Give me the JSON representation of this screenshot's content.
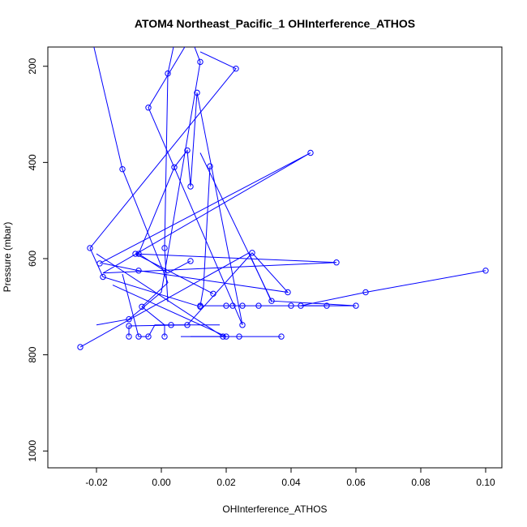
{
  "chart_data": {
    "type": "line",
    "title": "ATOM4 Northeast_Pacific_1 OHInterference_ATHOS",
    "xlabel": "OHInterference_ATHOS",
    "ylabel": "Pressure (mbar)",
    "xlim": [
      -0.035,
      0.105
    ],
    "ylim": [
      1035,
      160
    ],
    "y_reversed": true,
    "x_ticks": [
      -0.02,
      0.0,
      0.02,
      0.04,
      0.06,
      0.08,
      0.1
    ],
    "x_tick_labels": [
      "-0.02",
      "0.00",
      "0.02",
      "0.04",
      "0.06",
      "0.08",
      "0.10"
    ],
    "y_ticks": [
      200,
      400,
      600,
      800,
      1000
    ],
    "y_tick_labels": [
      "200",
      "400",
      "600",
      "800",
      "1000"
    ],
    "grid": false,
    "color": "#0000ff",
    "marker": "open-circle",
    "series": [
      {
        "x": [
          -0.022,
          -0.012,
          0.002,
          -0.006,
          0.001,
          0.001
        ],
        "y": [
          125,
          414,
          650,
          700,
          738,
          762
        ],
        "markers": [
          false,
          true,
          false,
          true,
          false,
          true
        ]
      },
      {
        "x": [
          0.005,
          0.002,
          0.001,
          0.002
        ],
        "y": [
          120,
          215,
          578,
          690
        ],
        "markers": [
          false,
          true,
          true,
          false
        ]
      },
      {
        "x": [
          0.008,
          0.012,
          0.0,
          -0.01,
          -0.02
        ],
        "y": [
          120,
          191,
          670,
          726,
          738
        ],
        "markers": [
          false,
          true,
          false,
          true,
          false
        ]
      },
      {
        "x": [
          0.012,
          0.023,
          -0.022,
          -0.018,
          0.012
        ],
        "y": [
          170,
          205,
          578,
          638,
          700
        ],
        "markers": [
          false,
          true,
          true,
          true,
          true
        ]
      },
      {
        "x": [
          0.009,
          -0.004,
          0.025,
          0.011,
          0.009,
          0.008,
          0.004,
          -0.007,
          0.002,
          0.009
        ],
        "y": [
          140,
          286,
          738,
          255,
          450,
          375,
          410,
          590,
          630,
          605
        ],
        "markers": [
          false,
          true,
          true,
          true,
          true,
          true,
          true,
          true,
          false,
          true
        ]
      },
      {
        "x": [
          0.015,
          0.013,
          0.012,
          0.02,
          0.025,
          0.03,
          0.022,
          0.04,
          0.051
        ],
        "y": [
          408,
          660,
          698,
          698,
          698,
          698,
          698,
          698,
          698
        ],
        "markers": [
          true,
          false,
          true,
          true,
          true,
          true,
          true,
          true,
          true
        ]
      },
      {
        "x": [
          0.012,
          0.034,
          0.06,
          0.043,
          0.063,
          0.1
        ],
        "y": [
          380,
          688,
          698,
          698,
          670,
          625
        ],
        "markers": [
          false,
          true,
          true,
          true,
          true,
          true
        ]
      },
      {
        "x": [
          -0.019,
          0.046,
          -0.018,
          0.054,
          -0.008,
          0.016
        ],
        "y": [
          610,
          380,
          630,
          608,
          590,
          673
        ],
        "markers": [
          true,
          true,
          false,
          true,
          true,
          true
        ]
      },
      {
        "x": [
          -0.018,
          -0.007,
          0.039,
          0.028,
          0.008,
          -0.01,
          -0.01
        ],
        "y": [
          610,
          625,
          670,
          588,
          738,
          740,
          762
        ],
        "markers": [
          false,
          true,
          true,
          true,
          true,
          true,
          true
        ]
      },
      {
        "x": [
          -0.012,
          -0.007,
          -0.004,
          -0.002,
          0.003,
          0.016,
          0.018
        ],
        "y": [
          632,
          762,
          762,
          738,
          738,
          738,
          738
        ],
        "markers": [
          false,
          true,
          true,
          false,
          true,
          false,
          false
        ]
      },
      {
        "x": [
          -0.02,
          0.019,
          0.037,
          0.024,
          0.009
        ],
        "y": [
          590,
          762,
          762,
          762,
          762
        ],
        "markers": [
          false,
          true,
          true,
          true,
          false
        ]
      },
      {
        "x": [
          -0.025,
          0.027,
          0.034
        ],
        "y": [
          784,
          588,
          690
        ],
        "markers": [
          true,
          false,
          false
        ]
      },
      {
        "x": [
          -0.015,
          0.02,
          0.006
        ],
        "y": [
          655,
          762,
          762
        ],
        "markers": [
          false,
          true,
          false
        ]
      }
    ]
  }
}
